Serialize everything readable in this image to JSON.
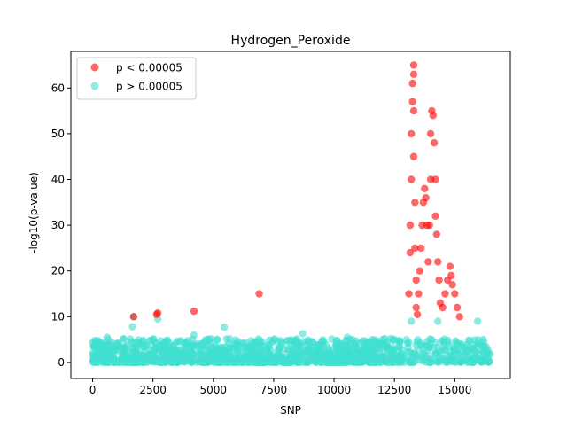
{
  "chart_data": {
    "type": "scatter",
    "title": "Hydrogen_Peroxide",
    "xlabel": "SNP",
    "ylabel": "-log10(p-value)",
    "xlim": [
      -900,
      17300
    ],
    "ylim": [
      -3.5,
      68
    ],
    "x_ticks": [
      0,
      2500,
      5000,
      7500,
      10000,
      12500,
      15000
    ],
    "x_tick_labels": [
      "0",
      "2500",
      "5000",
      "7500",
      "10000",
      "12500",
      "15000"
    ],
    "y_ticks": [
      0,
      10,
      20,
      30,
      40,
      50,
      60
    ],
    "y_tick_labels": [
      "0",
      "10",
      "20",
      "30",
      "40",
      "50",
      "60"
    ],
    "legend_position": "top-left",
    "grid": false,
    "series": [
      {
        "name": "p < 0.00005",
        "color": "#ff0000",
        "points": [
          [
            1700,
            10.0
          ],
          [
            2650,
            10.5
          ],
          [
            2700,
            10.8
          ],
          [
            4200,
            11.2
          ],
          [
            6900,
            15.0
          ],
          [
            13100,
            15.0
          ],
          [
            13150,
            24.0
          ],
          [
            13150,
            30.0
          ],
          [
            13200,
            40.0
          ],
          [
            13200,
            50.0
          ],
          [
            13250,
            57.0
          ],
          [
            13250,
            61.0
          ],
          [
            13300,
            65.0
          ],
          [
            13300,
            63.0
          ],
          [
            13300,
            55.0
          ],
          [
            13300,
            45.0
          ],
          [
            13350,
            35.0
          ],
          [
            13350,
            25.0
          ],
          [
            13400,
            18.0
          ],
          [
            13400,
            12.0
          ],
          [
            13450,
            10.5
          ],
          [
            13500,
            15.0
          ],
          [
            13550,
            20.0
          ],
          [
            13600,
            25.0
          ],
          [
            13650,
            30.0
          ],
          [
            13700,
            35.0
          ],
          [
            13750,
            38.0
          ],
          [
            13800,
            36.0
          ],
          [
            13850,
            30.0
          ],
          [
            13900,
            22.0
          ],
          [
            13950,
            30.0
          ],
          [
            14000,
            40.0
          ],
          [
            14000,
            50.0
          ],
          [
            14050,
            55.0
          ],
          [
            14100,
            54.0
          ],
          [
            14150,
            48.0
          ],
          [
            14200,
            40.0
          ],
          [
            14200,
            32.0
          ],
          [
            14250,
            28.0
          ],
          [
            14300,
            22.0
          ],
          [
            14350,
            18.0
          ],
          [
            14400,
            13.0
          ],
          [
            14500,
            12.0
          ],
          [
            14600,
            15.0
          ],
          [
            14700,
            18.0
          ],
          [
            14800,
            21.0
          ],
          [
            14850,
            19.0
          ],
          [
            14900,
            17.0
          ],
          [
            15000,
            15.0
          ],
          [
            15100,
            12.0
          ],
          [
            15200,
            10.0
          ]
        ]
      },
      {
        "name": "p > 0.00005",
        "color": "#40e0d0",
        "points": [
          [
            1700,
            10.0
          ],
          [
            1650,
            7.8
          ],
          [
            2700,
            9.5
          ],
          [
            4200,
            6.0
          ],
          [
            5450,
            7.7
          ],
          [
            8700,
            6.3
          ],
          [
            13200,
            9.0
          ],
          [
            14300,
            9.0
          ],
          [
            15950,
            9.0
          ],
          [
            12350,
            5.2
          ],
          [
            600,
            5.5
          ],
          [
            10550,
            5.5
          ]
        ]
      }
    ]
  }
}
